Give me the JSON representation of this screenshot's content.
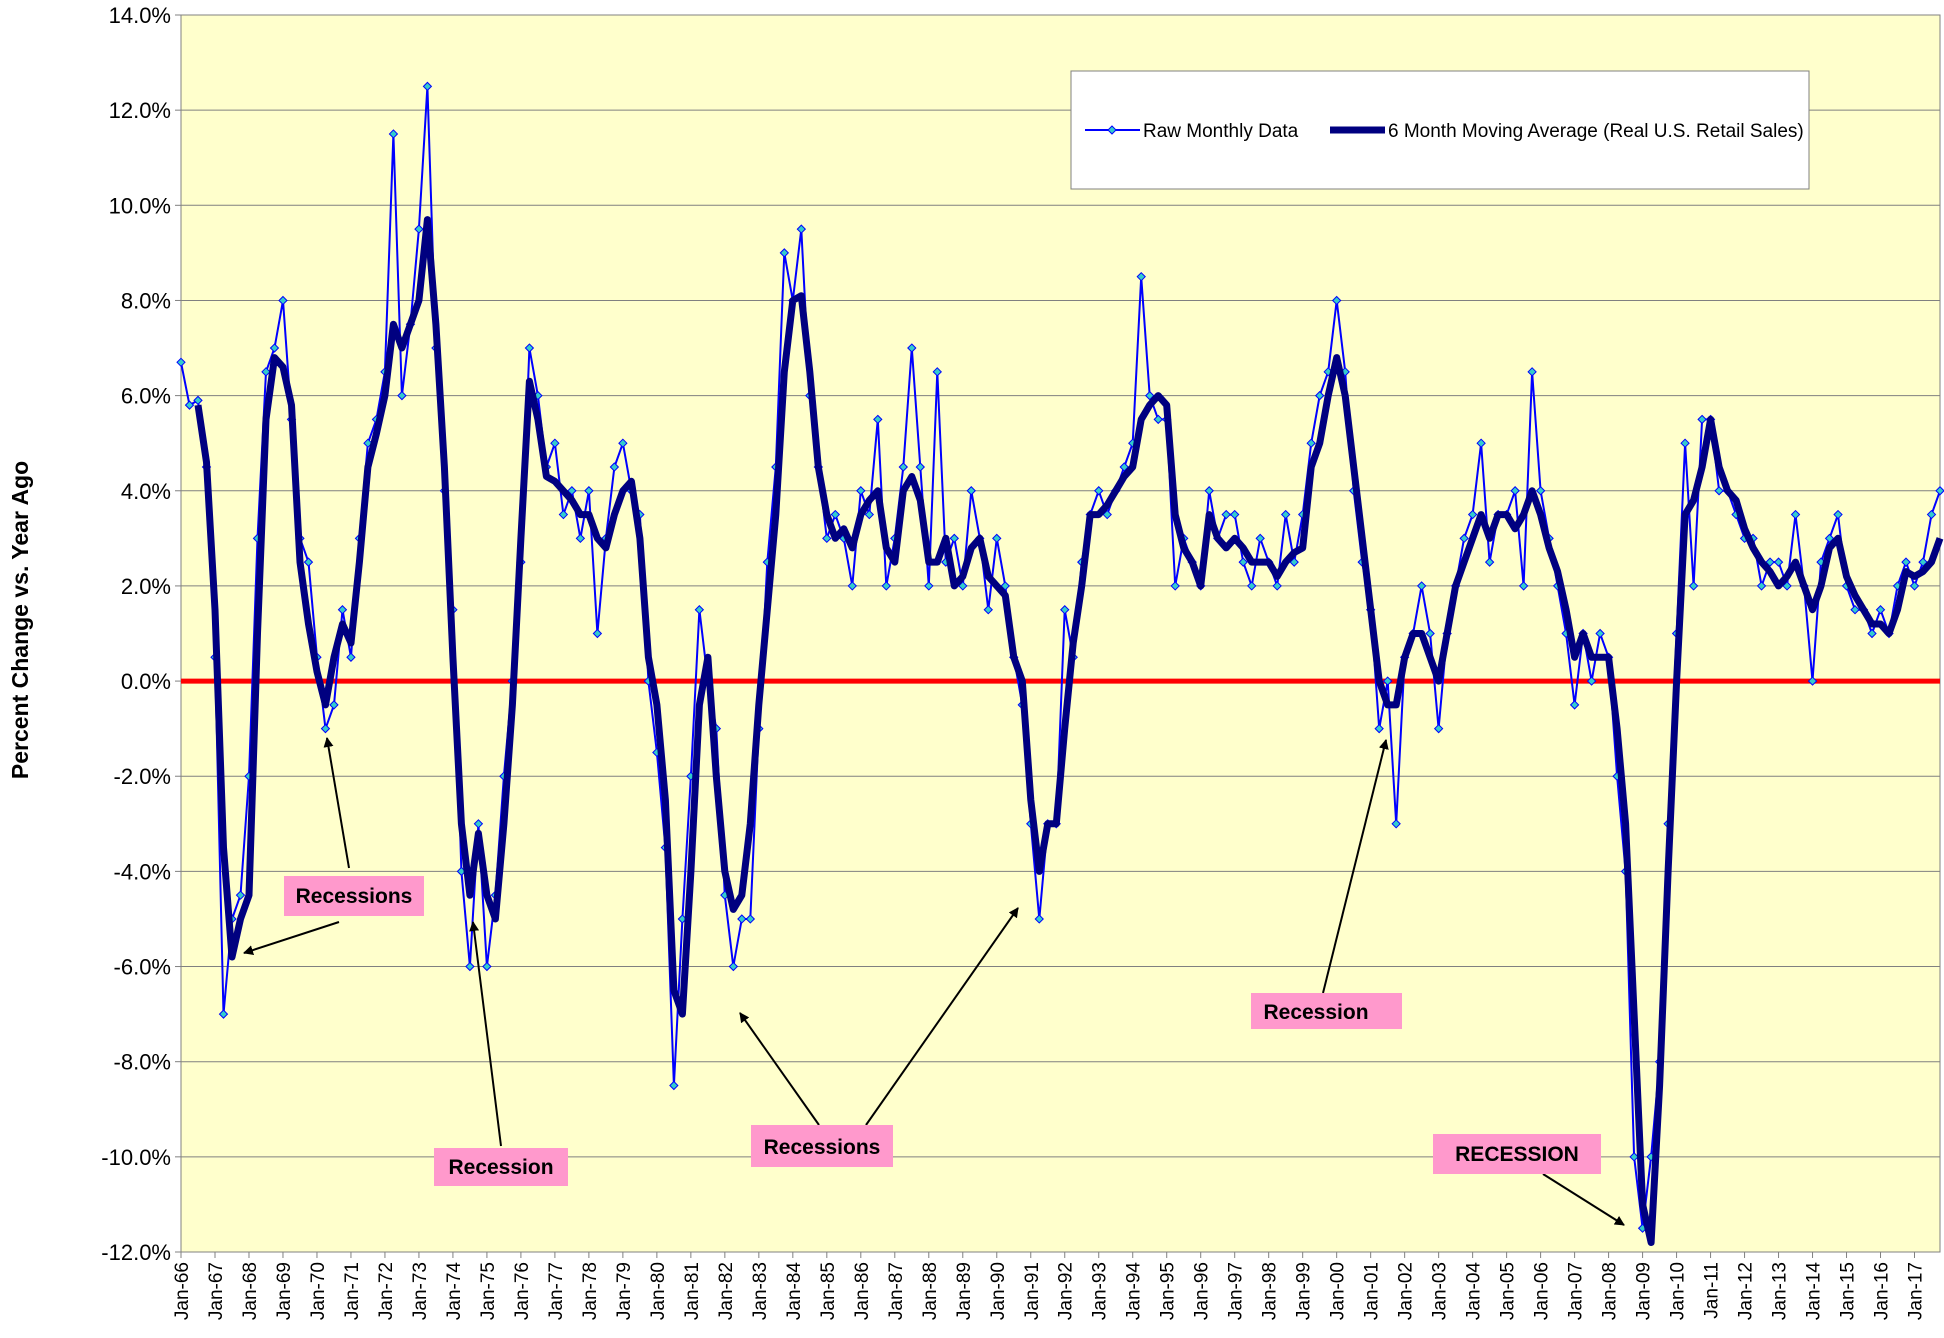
{
  "chart_data": {
    "type": "line",
    "y_axis_label": "Percent Change vs. Year Ago",
    "categories": [
      "Jan-66",
      null,
      null,
      null,
      "Jan-67",
      null,
      null,
      null,
      "Jan-68",
      null,
      null,
      null,
      "Jan-69",
      null,
      null,
      null,
      "Jan-70",
      null,
      null,
      null,
      "Jan-71",
      null,
      null,
      null,
      "Jan-72",
      null,
      null,
      null,
      "Jan-73",
      null,
      null,
      null,
      "Jan-74",
      null,
      null,
      null,
      "Jan-75",
      null,
      null,
      null,
      "Jan-76",
      null,
      null,
      null,
      "Jan-77",
      null,
      null,
      null,
      "Jan-78",
      null,
      null,
      null,
      "Jan-79",
      null,
      null,
      null,
      "Jan-80",
      null,
      null,
      null,
      "Jan-81",
      null,
      null,
      null,
      "Jan-82",
      null,
      null,
      null,
      "Jan-83",
      null,
      null,
      null,
      "Jan-84",
      null,
      null,
      null,
      "Jan-85",
      null,
      null,
      null,
      "Jan-86",
      null,
      null,
      null,
      "Jan-87",
      null,
      null,
      null,
      "Jan-88",
      null,
      null,
      null,
      "Jan-89",
      null,
      null,
      null,
      "Jan-90",
      null,
      null,
      null,
      "Jan-91",
      null,
      null,
      null,
      "Jan-92",
      null,
      null,
      null,
      "Jan-93",
      null,
      null,
      null,
      "Jan-94",
      null,
      null,
      null,
      "Jan-95",
      null,
      null,
      null,
      "Jan-96",
      null,
      null,
      null,
      "Jan-97",
      null,
      null,
      null,
      "Jan-98",
      null,
      null,
      null,
      "Jan-99",
      null,
      null,
      null,
      "Jan-00",
      null,
      null,
      null,
      "Jan-01",
      null,
      null,
      null,
      "Jan-02",
      null,
      null,
      null,
      "Jan-03",
      null,
      null,
      null,
      "Jan-04",
      null,
      null,
      null,
      "Jan-05",
      null,
      null,
      null,
      "Jan-06",
      null,
      null,
      null,
      "Jan-07",
      null,
      null,
      null,
      "Jan-08",
      null,
      null,
      null,
      "Jan-09",
      null,
      null,
      null,
      "Jan-10",
      null,
      null,
      null,
      "Jan-11",
      null,
      null,
      null,
      "Jan-12",
      null,
      null,
      null,
      "Jan-13",
      null,
      null,
      null,
      "Jan-14",
      null,
      null,
      null,
      "Jan-15",
      null,
      null,
      null,
      "Jan-16",
      null,
      null,
      null,
      "Jan-17",
      null,
      null,
      null
    ],
    "series": [
      {
        "name": "Raw Monthly Data",
        "color": "#0000ff",
        "marker_color": "#33cccc",
        "values": [
          6.7,
          5.8,
          5.9,
          4.5,
          0.5,
          -7.0,
          -5.0,
          -4.5,
          -2.0,
          3.0,
          6.5,
          7.0,
          8.0,
          5.5,
          3.0,
          2.5,
          0.5,
          -1.0,
          -0.5,
          1.5,
          0.5,
          3.0,
          5.0,
          5.5,
          6.5,
          11.5,
          6.0,
          7.5,
          9.5,
          12.5,
          7.0,
          4.0,
          1.5,
          -4.0,
          -6.0,
          -3.0,
          -6.0,
          -4.5,
          -2.0,
          0.0,
          2.5,
          7.0,
          6.0,
          4.5,
          5.0,
          3.5,
          4.0,
          3.0,
          4.0,
          1.0,
          3.0,
          4.5,
          5.0,
          4.0,
          3.5,
          0.0,
          -1.5,
          -3.5,
          -8.5,
          -5.0,
          -2.0,
          1.5,
          0.0,
          -1.0,
          -4.5,
          -6.0,
          -5.0,
          -5.0,
          -1.0,
          2.5,
          4.5,
          9.0,
          8.0,
          9.5,
          6.0,
          4.5,
          3.0,
          3.5,
          3.0,
          2.0,
          4.0,
          3.5,
          5.5,
          2.0,
          3.0,
          4.5,
          7.0,
          4.5,
          2.0,
          6.5,
          2.5,
          3.0,
          2.0,
          4.0,
          3.0,
          1.5,
          3.0,
          2.0,
          0.5,
          -0.5,
          -3.0,
          -5.0,
          -3.0,
          -3.0,
          1.5,
          0.5,
          2.5,
          3.5,
          4.0,
          3.5,
          4.0,
          4.5,
          5.0,
          8.5,
          6.0,
          5.5,
          5.5,
          2.0,
          3.0,
          2.5,
          2.0,
          4.0,
          3.0,
          3.5,
          3.5,
          2.5,
          2.0,
          3.0,
          2.5,
          2.0,
          3.5,
          2.5,
          3.5,
          5.0,
          6.0,
          6.5,
          8.0,
          6.5,
          4.0,
          2.5,
          1.5,
          -1.0,
          0.0,
          -3.0,
          0.5,
          1.0,
          2.0,
          1.0,
          -1.0,
          1.0,
          2.0,
          3.0,
          3.5,
          5.0,
          2.5,
          3.5,
          3.5,
          4.0,
          2.0,
          6.5,
          4.0,
          3.0,
          2.0,
          1.0,
          -0.5,
          1.0,
          0.0,
          1.0,
          0.5,
          -2.0,
          -4.0,
          -10.0,
          -11.5,
          -10.0,
          -8.0,
          -3.0,
          1.0,
          5.0,
          2.0,
          5.5,
          5.5,
          4.0,
          4.0,
          3.5,
          3.0,
          3.0,
          2.0,
          2.5,
          2.5,
          2.0,
          3.5,
          2.0,
          0.0,
          2.5,
          3.0,
          3.5,
          2.0,
          1.5,
          1.5,
          1.0,
          1.5,
          1.0,
          2.0,
          2.5,
          2.0,
          2.5,
          3.5,
          4.0
        ]
      },
      {
        "name": "6 Month Moving Average (Real U.S. Retail Sales)",
        "color": "#000080",
        "values": [
          null,
          null,
          5.8,
          4.6,
          1.5,
          -3.5,
          -5.8,
          -5.0,
          -4.5,
          1.0,
          5.5,
          6.8,
          6.6,
          5.8,
          2.5,
          1.2,
          0.2,
          -0.5,
          0.5,
          1.2,
          0.8,
          2.5,
          4.5,
          5.2,
          6.0,
          7.5,
          7.0,
          7.5,
          8.0,
          9.7,
          7.5,
          4.5,
          0.5,
          -3.0,
          -4.5,
          -3.2,
          -4.5,
          -5.0,
          -3.0,
          -0.5,
          3.0,
          6.3,
          5.5,
          4.3,
          4.2,
          4.0,
          3.8,
          3.5,
          3.5,
          3.0,
          2.8,
          3.5,
          4.0,
          4.2,
          3.0,
          0.5,
          -0.5,
          -2.5,
          -6.5,
          -7.0,
          -4.0,
          -0.5,
          0.5,
          -2.0,
          -4.0,
          -4.8,
          -4.5,
          -3.0,
          -0.5,
          1.5,
          3.5,
          6.5,
          8.0,
          8.1,
          6.5,
          4.5,
          3.5,
          3.0,
          3.2,
          2.8,
          3.5,
          3.8,
          4.0,
          2.8,
          2.5,
          4.0,
          4.3,
          3.8,
          2.5,
          2.5,
          3.0,
          2.0,
          2.2,
          2.8,
          3.0,
          2.2,
          2.0,
          1.8,
          0.5,
          0.0,
          -2.5,
          -4.0,
          -3.0,
          -3.0,
          -1.0,
          0.8,
          2.0,
          3.5,
          3.5,
          3.7,
          4.0,
          4.3,
          4.5,
          5.5,
          5.8,
          6.0,
          5.8,
          3.5,
          2.8,
          2.5,
          2.0,
          3.5,
          3.0,
          2.8,
          3.0,
          2.8,
          2.5,
          2.5,
          2.5,
          2.2,
          2.5,
          2.7,
          2.8,
          4.5,
          5.0,
          6.0,
          6.8,
          6.0,
          4.5,
          3.0,
          1.5,
          0.0,
          -0.5,
          -0.5,
          0.5,
          1.0,
          1.0,
          0.5,
          0.0,
          1.0,
          2.0,
          2.5,
          3.0,
          3.5,
          3.0,
          3.5,
          3.5,
          3.2,
          3.5,
          4.0,
          3.5,
          2.8,
          2.3,
          1.5,
          0.5,
          1.0,
          0.5,
          0.5,
          0.5,
          -1.0,
          -3.0,
          -7.0,
          -11.0,
          -11.8,
          -8.5,
          -4.0,
          0.0,
          3.5,
          3.8,
          4.5,
          5.5,
          4.5,
          4.0,
          3.8,
          3.2,
          2.8,
          2.5,
          2.3,
          2.0,
          2.2,
          2.5,
          2.0,
          1.5,
          2.0,
          2.8,
          3.0,
          2.2,
          1.8,
          1.5,
          1.2,
          1.2,
          1.0,
          1.5,
          2.3,
          2.2,
          2.3,
          2.5,
          3.0
        ]
      }
    ],
    "ylim": [
      -12,
      14
    ],
    "yticks": [
      {
        "value": 14,
        "label": "14.0%"
      },
      {
        "value": 12,
        "label": "12.0%"
      },
      {
        "value": 10,
        "label": "10.0%"
      },
      {
        "value": 8,
        "label": "8.0%"
      },
      {
        "value": 6,
        "label": "6.0%"
      },
      {
        "value": 4,
        "label": "4.0%"
      },
      {
        "value": 2,
        "label": "2.0%"
      },
      {
        "value": 0,
        "label": "0.0%"
      },
      {
        "value": -2,
        "label": "-2.0%"
      },
      {
        "value": -4,
        "label": "-4.0%"
      },
      {
        "value": -6,
        "label": "-6.0%"
      },
      {
        "value": -8,
        "label": "-8.0%"
      },
      {
        "value": -10,
        "label": "-10.0%"
      },
      {
        "value": -12,
        "label": "-12.0%"
      }
    ],
    "grid": true,
    "zero_line_color": "#ff0000",
    "annotations": [
      "Recessions",
      "Recession",
      "Recessions",
      "Recession",
      "RECESSION"
    ]
  }
}
